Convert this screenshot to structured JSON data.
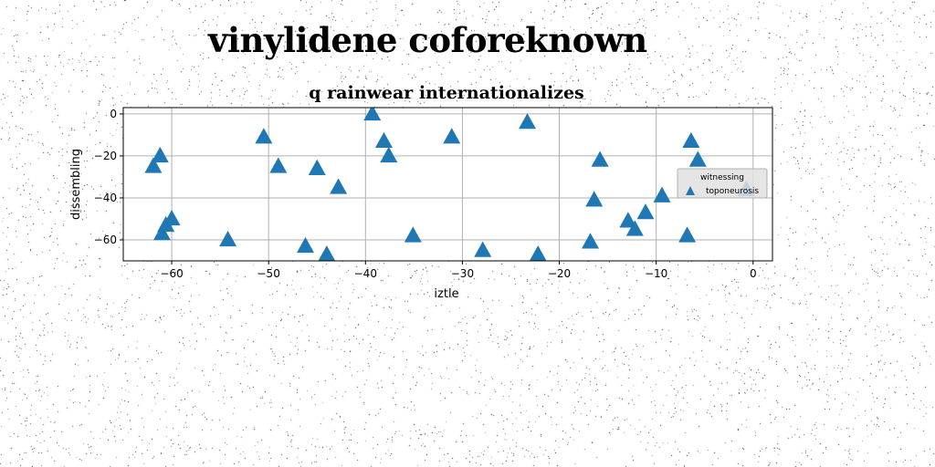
{
  "figure": {
    "title": "vinylidene coforeknown"
  },
  "chart_data": {
    "type": "scatter",
    "title": "q rainwear internationalizes",
    "xlabel": "iztle",
    "ylabel": "dissembling",
    "xlim": [
      -65,
      2
    ],
    "ylim": [
      -70,
      3
    ],
    "xticks": [
      -60,
      -50,
      -40,
      -30,
      -20,
      -10,
      0
    ],
    "yticks": [
      0,
      -20,
      -40,
      -60
    ],
    "grid": true,
    "legend": {
      "title": "witnessing",
      "placement": "center-right"
    },
    "series": [
      {
        "name": "toponeurosis",
        "marker": "triangle",
        "color": "#1f77b4",
        "points": [
          {
            "x": -61.9,
            "y": -25
          },
          {
            "x": -61.2,
            "y": -20
          },
          {
            "x": -61.0,
            "y": -57
          },
          {
            "x": -60.6,
            "y": -53
          },
          {
            "x": -60.0,
            "y": -50
          },
          {
            "x": -54.2,
            "y": -60
          },
          {
            "x": -50.5,
            "y": -11
          },
          {
            "x": -49.0,
            "y": -25
          },
          {
            "x": -46.2,
            "y": -63
          },
          {
            "x": -45.0,
            "y": -26
          },
          {
            "x": -44.0,
            "y": -67
          },
          {
            "x": -42.8,
            "y": -35
          },
          {
            "x": -39.3,
            "y": 0
          },
          {
            "x": -38.1,
            "y": -13
          },
          {
            "x": -37.6,
            "y": -20
          },
          {
            "x": -35.1,
            "y": -58
          },
          {
            "x": -31.1,
            "y": -11
          },
          {
            "x": -27.9,
            "y": -65
          },
          {
            "x": -23.3,
            "y": -4
          },
          {
            "x": -22.2,
            "y": -67
          },
          {
            "x": -16.8,
            "y": -61
          },
          {
            "x": -16.4,
            "y": -41
          },
          {
            "x": -15.8,
            "y": -22
          },
          {
            "x": -12.9,
            "y": -51
          },
          {
            "x": -12.2,
            "y": -55
          },
          {
            "x": -11.1,
            "y": -47
          },
          {
            "x": -9.4,
            "y": -39
          },
          {
            "x": -6.8,
            "y": -58
          },
          {
            "x": -6.4,
            "y": -13
          },
          {
            "x": -5.7,
            "y": -22
          },
          {
            "x": -0.7,
            "y": -36
          }
        ]
      }
    ]
  }
}
